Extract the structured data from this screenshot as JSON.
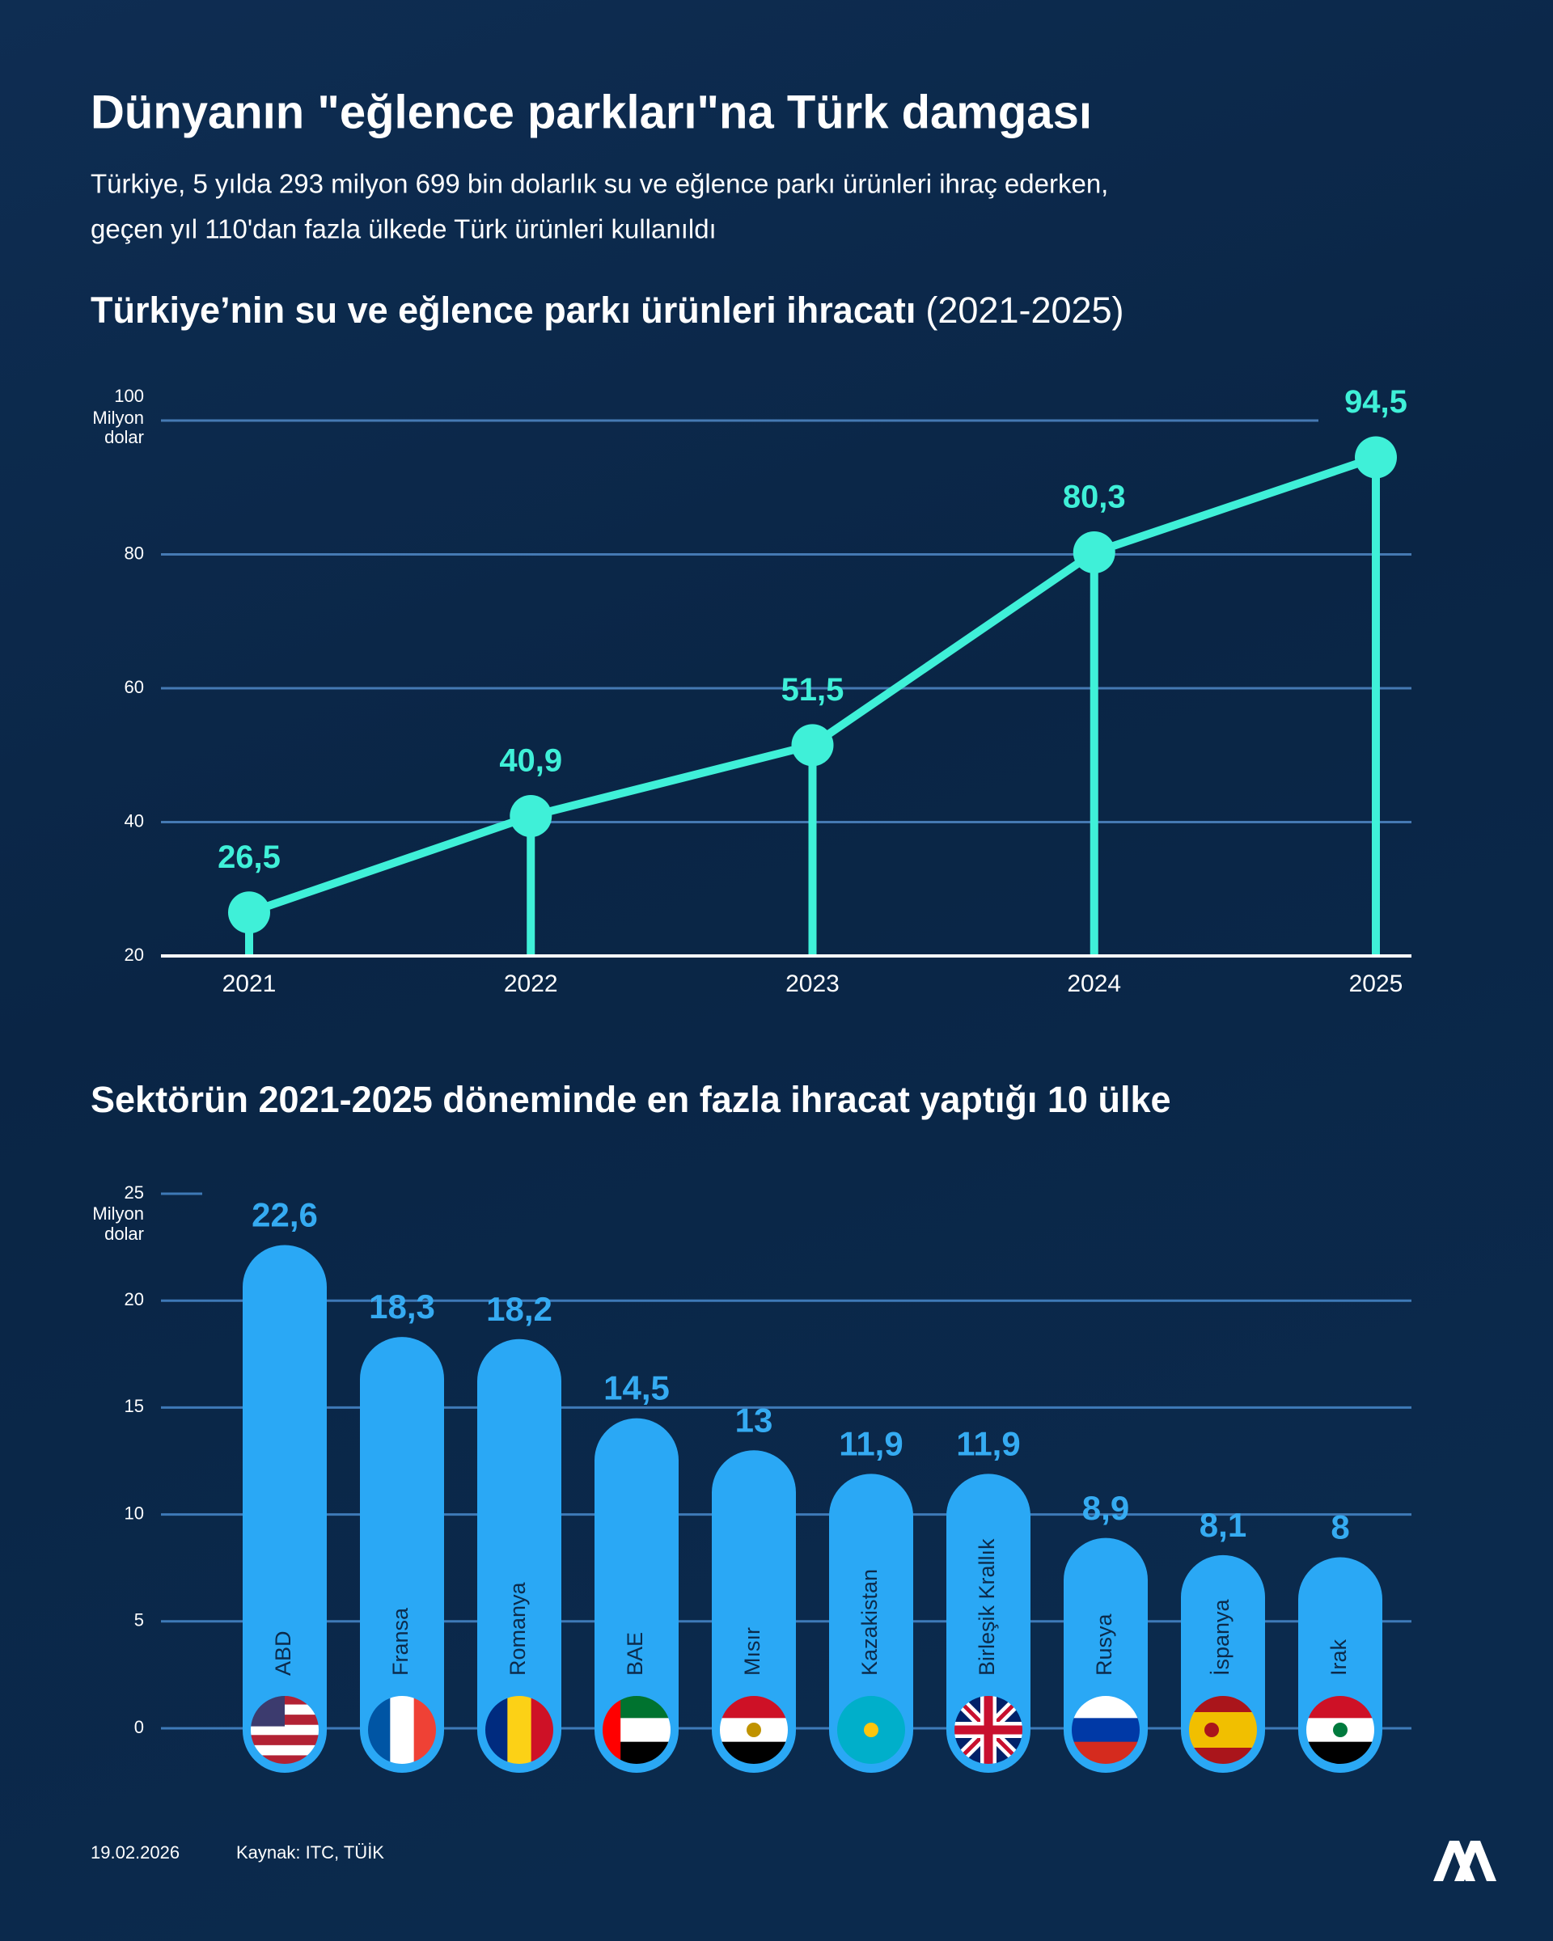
{
  "title": "Dünyanın \"eğlence parkları\"na Türk damgası",
  "subtitle": [
    "Türkiye, 5 yılda 293 milyon 699 bin dolarlık su ve eğlence parkı ürünleri ihraç ederken,",
    "geçen yıl 110'dan fazla ülkede Türk ürünleri kullanıldı"
  ],
  "chart_data": [
    {
      "type": "line",
      "title": "Türkiye’nin su ve eğlence parkı ürünleri ihracatı",
      "title_period": "(2021-2025)",
      "ylabel": [
        "Milyon",
        "dolar"
      ],
      "categories": [
        "2021",
        "2022",
        "2023",
        "2024",
        "2025"
      ],
      "values": [
        26.5,
        40.9,
        51.5,
        80.3,
        94.5
      ],
      "value_labels": [
        "26,5",
        "40,9",
        "51,5",
        "80,3",
        "94,5"
      ],
      "color": "#3ff0d8",
      "ylim": [
        20,
        100
      ],
      "yticks": [
        20,
        40,
        60,
        80,
        100
      ],
      "grid": true
    },
    {
      "type": "bar",
      "title": "Sektörün 2021-2025 döneminde en fazla ihracat yaptığı 10 ülke",
      "ylabel": [
        "Milyon",
        "dolar"
      ],
      "categories": [
        "ABD",
        "Fransa",
        "Romanya",
        "BAE",
        "Mısır",
        "Kazakistan",
        "Birleşik Krallık",
        "Rusya",
        "İspanya",
        "Irak"
      ],
      "values": [
        22.6,
        18.3,
        18.2,
        14.5,
        13,
        11.9,
        11.9,
        8.9,
        8.1,
        8
      ],
      "value_labels": [
        "22,6",
        "18,3",
        "18,2",
        "14,5",
        "13",
        "11,9",
        "11,9",
        "8,9",
        "8,1",
        "8"
      ],
      "color": "#2aa8f5",
      "ylim": [
        0,
        25
      ],
      "yticks": [
        0,
        5,
        10,
        15,
        20,
        25
      ],
      "grid": true
    }
  ],
  "footer": {
    "date": "19.02.2026",
    "source": "Kaynak: ITC, TÜİK"
  }
}
